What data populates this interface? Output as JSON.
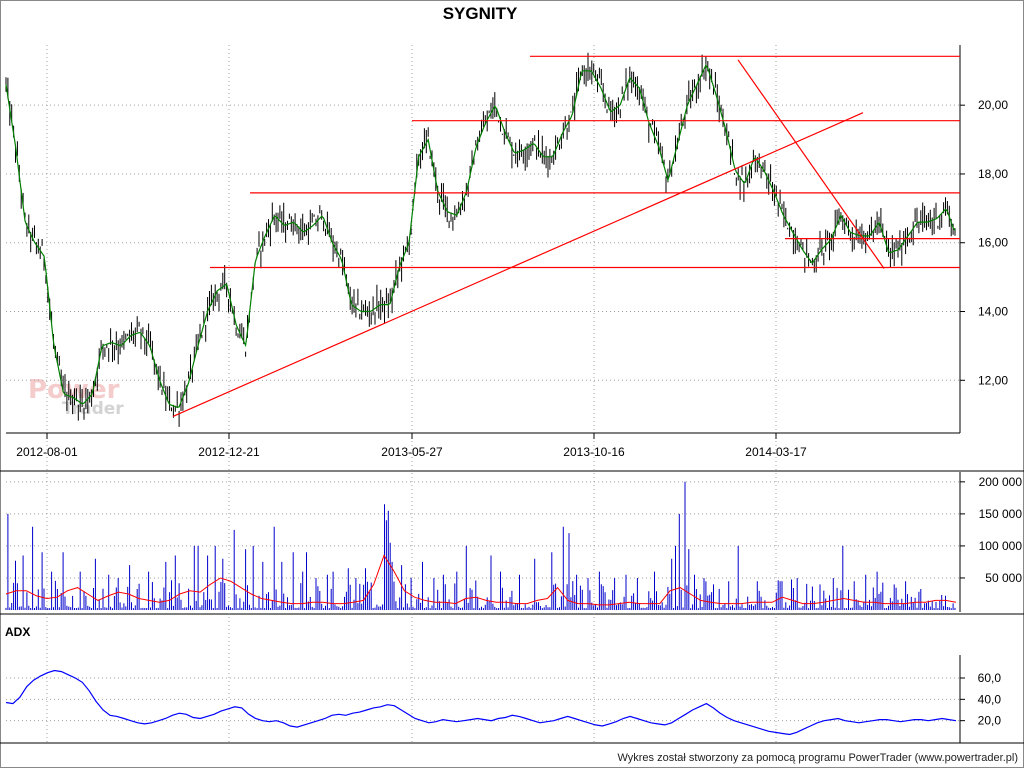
{
  "chart_data": [
    {
      "type": "line",
      "name": "price",
      "title": "SYGNITY",
      "x_tick_labels": [
        "2012-08-01",
        "2012-12-21",
        "2013-05-27",
        "2013-10-16",
        "2014-03-17"
      ],
      "y_tick_labels": [
        "12,00",
        "14,00",
        "16,00",
        "18,00",
        "20,00"
      ],
      "y_ticks": [
        12,
        14,
        16,
        18,
        20
      ],
      "ylim": [
        10.7,
        21.75
      ],
      "grid": true,
      "x_index": [
        0,
        5,
        10,
        15,
        20,
        25,
        30,
        35,
        40,
        45,
        50,
        55,
        60,
        65,
        70,
        75,
        80,
        85,
        90,
        95,
        100,
        105,
        110,
        115,
        120,
        125,
        130,
        135,
        140,
        145,
        150,
        155,
        160,
        165,
        170,
        175,
        180,
        185,
        190,
        195,
        200,
        205,
        210,
        215,
        220,
        225,
        230,
        235,
        240,
        245,
        250,
        255,
        260,
        265,
        270,
        275,
        280,
        285,
        290,
        295,
        300,
        305,
        310,
        315,
        320,
        325,
        330,
        335,
        340,
        345,
        350,
        355,
        360,
        365,
        370,
        375,
        380,
        385,
        390,
        395,
        400,
        405,
        410,
        415,
        420,
        425,
        430,
        435,
        440,
        445,
        450,
        455,
        460,
        465,
        470,
        475,
        480,
        485,
        490,
        495
      ],
      "close": [
        20.6,
        18.8,
        16.6,
        16.0,
        15.6,
        13.0,
        11.6,
        11.5,
        11.3,
        11.6,
        13.0,
        13.1,
        13.0,
        13.3,
        13.4,
        13.0,
        12.0,
        11.3,
        11.2,
        11.9,
        13.0,
        14.0,
        14.6,
        14.8,
        13.6,
        13.0,
        15.5,
        16.2,
        16.8,
        16.5,
        16.6,
        16.3,
        16.5,
        16.8,
        16.0,
        15.5,
        14.2,
        14.0,
        14.0,
        14.2,
        14.2,
        15.3,
        16.0,
        18.5,
        19.0,
        17.5,
        16.9,
        16.8,
        17.5,
        18.8,
        19.5,
        20.0,
        19.2,
        18.6,
        18.7,
        18.9,
        18.5,
        18.5,
        19.2,
        19.7,
        21.0,
        21.0,
        20.5,
        19.8,
        20.0,
        20.8,
        20.5,
        19.5,
        18.8,
        17.8,
        18.9,
        20.0,
        20.6,
        21.2,
        20.3,
        19.3,
        18.1,
        17.7,
        18.5,
        18.1,
        17.5,
        16.8,
        16.3,
        15.8,
        15.4,
        15.8,
        16.1,
        16.8,
        16.3,
        16.2,
        16.2,
        16.6,
        15.7,
        15.8,
        16.2,
        16.6,
        16.6,
        16.7,
        17.0,
        16.2
      ]
    },
    {
      "type": "bar",
      "name": "volume",
      "y_tick_labels": [
        "50 000",
        "100 000",
        "150 000",
        "200 000"
      ],
      "y_ticks": [
        50000,
        100000,
        150000,
        200000
      ],
      "ylim": [
        0,
        206000
      ],
      "spikes": [
        {
          "i": 3,
          "v": 150000
        },
        {
          "i": 10,
          "v": 77000
        },
        {
          "i": 18,
          "v": 85000
        },
        {
          "i": 28,
          "v": 130000
        },
        {
          "i": 38,
          "v": 90000
        },
        {
          "i": 48,
          "v": 60000
        },
        {
          "i": 60,
          "v": 90000
        },
        {
          "i": 78,
          "v": 60000
        },
        {
          "i": 95,
          "v": 80000
        },
        {
          "i": 108,
          "v": 55000
        },
        {
          "i": 118,
          "v": 50000
        },
        {
          "i": 130,
          "v": 70000
        },
        {
          "i": 150,
          "v": 60000
        },
        {
          "i": 168,
          "v": 75000
        },
        {
          "i": 178,
          "v": 85000
        },
        {
          "i": 198,
          "v": 100000
        },
        {
          "i": 203,
          "v": 100000
        },
        {
          "i": 212,
          "v": 85000
        },
        {
          "i": 220,
          "v": 100000
        },
        {
          "i": 228,
          "v": 80000
        },
        {
          "i": 240,
          "v": 125000
        },
        {
          "i": 252,
          "v": 95000
        },
        {
          "i": 260,
          "v": 100000
        },
        {
          "i": 270,
          "v": 75000
        },
        {
          "i": 282,
          "v": 130000
        },
        {
          "i": 291,
          "v": 75000
        },
        {
          "i": 302,
          "v": 90000
        },
        {
          "i": 312,
          "v": 60000
        },
        {
          "i": 317,
          "v": 90000
        },
        {
          "i": 326,
          "v": 50000
        },
        {
          "i": 338,
          "v": 55000
        },
        {
          "i": 345,
          "v": 60000
        },
        {
          "i": 360,
          "v": 65000
        },
        {
          "i": 368,
          "v": 50000
        },
        {
          "i": 378,
          "v": 65000
        },
        {
          "i": 398,
          "v": 165000
        },
        {
          "i": 400,
          "v": 140000
        },
        {
          "i": 402,
          "v": 155000
        },
        {
          "i": 404,
          "v": 105000
        },
        {
          "i": 406,
          "v": 75000
        },
        {
          "i": 416,
          "v": 70000
        },
        {
          "i": 426,
          "v": 50000
        },
        {
          "i": 438,
          "v": 75000
        },
        {
          "i": 450,
          "v": 50000
        },
        {
          "i": 460,
          "v": 55000
        },
        {
          "i": 474,
          "v": 60000
        },
        {
          "i": 484,
          "v": 100000
        },
        {
          "i": 510,
          "v": 85000
        },
        {
          "i": 520,
          "v": 60000
        },
        {
          "i": 540,
          "v": 55000
        },
        {
          "i": 556,
          "v": 80000
        },
        {
          "i": 575,
          "v": 90000
        },
        {
          "i": 587,
          "v": 130000
        },
        {
          "i": 592,
          "v": 120000
        },
        {
          "i": 600,
          "v": 55000
        },
        {
          "i": 612,
          "v": 50000
        },
        {
          "i": 625,
          "v": 60000
        },
        {
          "i": 640,
          "v": 50000
        },
        {
          "i": 652,
          "v": 55000
        },
        {
          "i": 664,
          "v": 50000
        },
        {
          "i": 682,
          "v": 60000
        },
        {
          "i": 700,
          "v": 80000
        },
        {
          "i": 705,
          "v": 100000
        },
        {
          "i": 709,
          "v": 150000
        },
        {
          "i": 714,
          "v": 200000
        },
        {
          "i": 719,
          "v": 95000
        },
        {
          "i": 725,
          "v": 55000
        },
        {
          "i": 735,
          "v": 50000
        },
        {
          "i": 745,
          "v": 40000
        },
        {
          "i": 760,
          "v": 45000
        },
        {
          "i": 770,
          "v": 100000
        },
        {
          "i": 790,
          "v": 45000
        },
        {
          "i": 815,
          "v": 45000
        },
        {
          "i": 832,
          "v": 50000
        },
        {
          "i": 856,
          "v": 40000
        },
        {
          "i": 870,
          "v": 50000
        },
        {
          "i": 881,
          "v": 100000
        },
        {
          "i": 893,
          "v": 45000
        },
        {
          "i": 905,
          "v": 55000
        },
        {
          "i": 916,
          "v": 60000
        },
        {
          "i": 934,
          "v": 40000
        },
        {
          "i": 947,
          "v": 45000
        }
      ],
      "moving_average": [
        25000,
        30000,
        30000,
        22000,
        18000,
        20000,
        30000,
        35000,
        25000,
        15000,
        22000,
        28000,
        25000,
        18000,
        15000,
        12000,
        15000,
        25000,
        30000,
        28000,
        40000,
        50000,
        45000,
        35000,
        25000,
        18000,
        15000,
        12000,
        10000,
        10000,
        12000,
        12000,
        10000,
        10000,
        12000,
        15000,
        40000,
        85000,
        60000,
        30000,
        20000,
        15000,
        12000,
        12000,
        10000,
        18000,
        20000,
        15000,
        12000,
        12000,
        10000,
        10000,
        15000,
        18000,
        35000,
        15000,
        10000,
        10000,
        8000,
        8000,
        10000,
        12000,
        10000,
        10000,
        10000,
        30000,
        35000,
        25000,
        15000,
        12000,
        10000,
        10000,
        10000,
        12000,
        12000,
        12000,
        20000,
        15000,
        10000,
        10000,
        12000,
        15000,
        18000,
        15000,
        12000,
        12000,
        10000,
        10000,
        10000,
        12000,
        12000,
        15000,
        15000,
        12000
      ]
    },
    {
      "type": "line",
      "name": "ADX",
      "title": "ADX",
      "y_tick_labels": [
        "20,0",
        "40,0",
        "60,0"
      ],
      "y_ticks": [
        20,
        40,
        60
      ],
      "ylim": [
        0,
        75
      ],
      "values": [
        37,
        36,
        42,
        52,
        58,
        62,
        65,
        67,
        66,
        63,
        60,
        56,
        48,
        38,
        30,
        25,
        24,
        22,
        20,
        18,
        17,
        18,
        20,
        22,
        25,
        27,
        26,
        23,
        22,
        24,
        26,
        29,
        31,
        33,
        32,
        26,
        22,
        20,
        19,
        20,
        18,
        15,
        14,
        16,
        18,
        20,
        22,
        25,
        26,
        25,
        27,
        28,
        30,
        32,
        33,
        35,
        34,
        30,
        26,
        22,
        20,
        18,
        19,
        21,
        20,
        19,
        20,
        21,
        22,
        21,
        20,
        22,
        23,
        25,
        24,
        22,
        20,
        18,
        19,
        20,
        22,
        24,
        22,
        20,
        18,
        16,
        15,
        17,
        19,
        22,
        24,
        22,
        20,
        18,
        17,
        16,
        18,
        22,
        26,
        30,
        33,
        36,
        32,
        27,
        23,
        20,
        18,
        16,
        14,
        12,
        10,
        9,
        8,
        7,
        9,
        12,
        15,
        18,
        20,
        21,
        22,
        20,
        19,
        18,
        19,
        20,
        21,
        21,
        20,
        19,
        20,
        21,
        21,
        20,
        21,
        22,
        21,
        20
      ]
    }
  ],
  "footer": {
    "credit": "Wykres został stworzony za pomocą programu PowerTrader (www.powertrader.pl)"
  },
  "watermark": {
    "line1": "Power",
    "line2": "Trader"
  },
  "colors": {
    "price_line": "#008000",
    "price_bars": "#000000",
    "trendline": "#ff0000",
    "volume_bars": "#0000cc",
    "volume_avg": "#ff0000",
    "adx_line": "#0000ff",
    "grid": "#a0a0a0"
  }
}
